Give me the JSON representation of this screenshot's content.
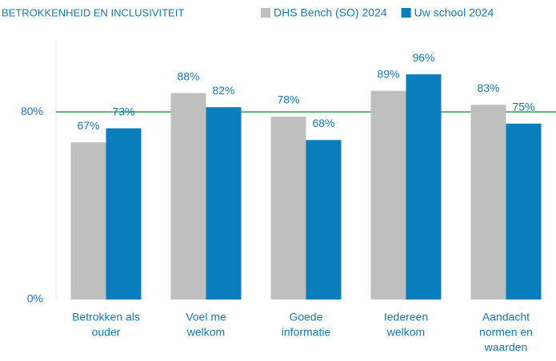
{
  "chart_data": {
    "type": "bar",
    "title": "BETROKKENHEID EN INCLUSIVITEIT",
    "categories": [
      [
        "Betrokken als",
        "ouder"
      ],
      [
        "Voel me",
        "welkom"
      ],
      [
        "Goede",
        "informatie"
      ],
      [
        "Iedereen",
        "welkom"
      ],
      [
        "Aandacht",
        "normen en",
        "waarden"
      ]
    ],
    "series": [
      {
        "name": "DHS Bench (SO) 2024",
        "color": "#bfbfbf",
        "values": [
          67,
          88,
          78,
          89,
          83
        ],
        "value_labels": [
          "67%",
          "88%",
          "78%",
          "89%",
          "83%"
        ]
      },
      {
        "name": "Uw school 2024",
        "color": "#0a7dbd",
        "values": [
          73,
          82,
          68,
          96,
          75
        ],
        "value_labels": [
          "73%",
          "82%",
          "68%",
          "96%",
          "75%"
        ]
      }
    ],
    "ylim": [
      0,
      110
    ],
    "yticks": [
      {
        "value": 0,
        "label": "0%"
      },
      {
        "value": 80,
        "label": "80%"
      }
    ],
    "grid": true,
    "grid_color": "#2e9e4a"
  }
}
